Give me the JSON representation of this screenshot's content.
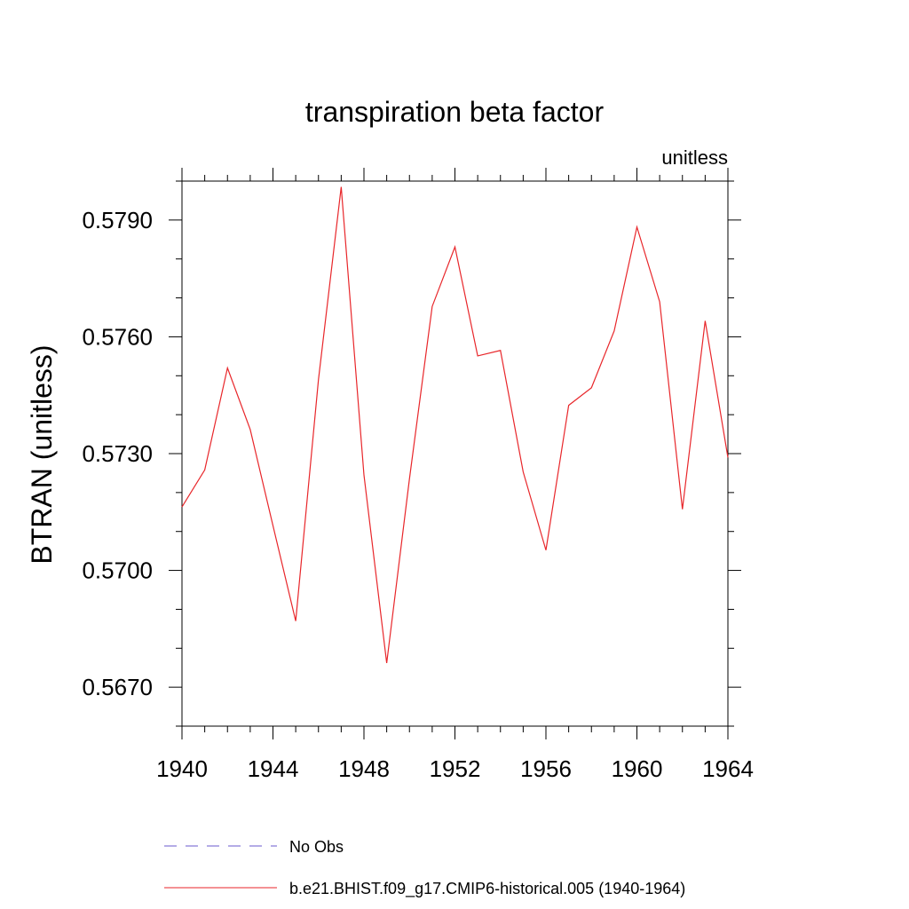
{
  "chart_data": {
    "type": "line",
    "title": "transpiration beta factor",
    "units_label": "unitless",
    "ylabel": "BTRAN  (unitless)",
    "xlabel": "",
    "xlim": [
      1940,
      1964
    ],
    "ylim": [
      0.566,
      0.58
    ],
    "x_ticks": [
      1940,
      1944,
      1948,
      1952,
      1956,
      1960,
      1964
    ],
    "x_tick_labels": [
      "1940",
      "1944",
      "1948",
      "1952",
      "1956",
      "1960",
      "1964"
    ],
    "y_ticks": [
      0.567,
      0.57,
      0.573,
      0.576,
      0.579
    ],
    "y_tick_labels": [
      "0.5670",
      "0.5700",
      "0.5730",
      "0.5760",
      "0.5790"
    ],
    "grid": false,
    "legend_position": "bottom",
    "series": [
      {
        "name": "b.e21.BHIST.f09_g17.CMIP6-historical.005 (1940-1964)",
        "color": "#e8262a",
        "style": "solid",
        "x": [
          1940,
          1941,
          1942,
          1943,
          1944,
          1945,
          1946,
          1947,
          1948,
          1949,
          1950,
          1951,
          1952,
          1953,
          1954,
          1955,
          1956,
          1957,
          1958,
          1959,
          1960,
          1961,
          1962,
          1963,
          1964
        ],
        "values": [
          0.57163,
          0.57258,
          0.5752,
          0.57362,
          0.57115,
          0.5687,
          0.5749,
          0.57985,
          0.57245,
          0.56762,
          0.57235,
          0.57678,
          0.57831,
          0.57551,
          0.57565,
          0.57253,
          0.57052,
          0.57424,
          0.57469,
          0.57615,
          0.57882,
          0.5769,
          0.57157,
          0.57641,
          0.5729
        ]
      },
      {
        "name": "No Obs",
        "color": "#6a5acd",
        "style": "dashed",
        "x": [],
        "values": []
      }
    ]
  }
}
